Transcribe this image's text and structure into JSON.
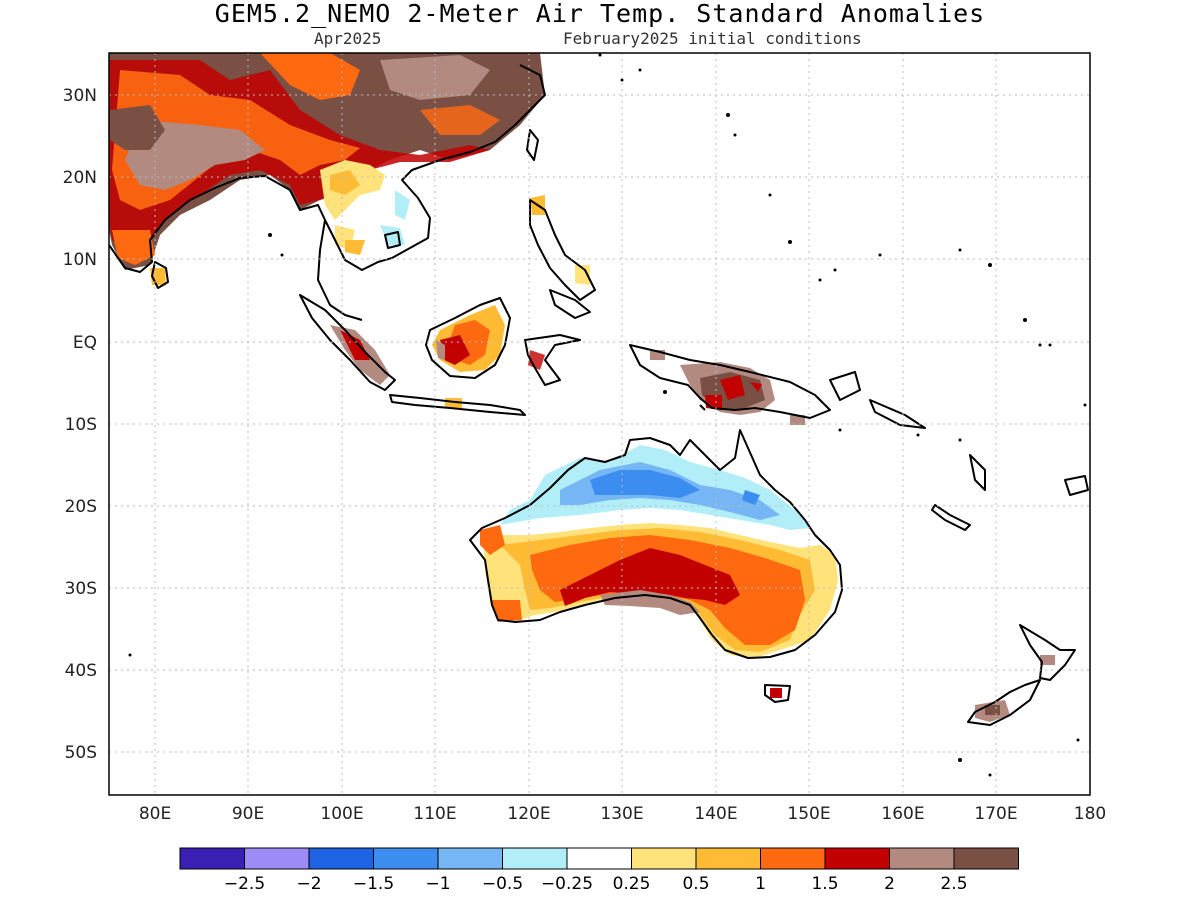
{
  "title": "GEM5.2_NEMO 2-Meter Air Temp. Standard Anomalies",
  "subtitle_left": "Apr2025",
  "subtitle_right": "February2025 initial conditions",
  "lat_labels": [
    "30N",
    "20N",
    "10N",
    "EQ",
    "10S",
    "20S",
    "30S",
    "40S",
    "50S"
  ],
  "lon_labels": [
    "80E",
    "90E",
    "100E",
    "110E",
    "120E",
    "130E",
    "140E",
    "150E",
    "160E",
    "170E",
    "180"
  ],
  "colorbar": {
    "colors": [
      "#3a1fb4",
      "#9d8cf5",
      "#1f63e5",
      "#3b8ef0",
      "#76b6f5",
      "#b2eef8",
      "#ffffff",
      "#ffe27a",
      "#ffbb33",
      "#ff6a10",
      "#c20000",
      "#b38a80",
      "#7a5045"
    ],
    "labels": [
      "-2.5",
      "-2",
      "-1.5",
      "-1",
      "-0.5",
      "-0.25",
      "0.25",
      "0.5",
      "1",
      "1.5",
      "2",
      "2.5"
    ]
  },
  "regions": [
    {
      "name": "South Asia",
      "category": "2.5"
    },
    {
      "name": "Indochina",
      "category": "0.25 to 0.5"
    },
    {
      "name": "Borneo",
      "category": "1 to 1.5"
    },
    {
      "name": "New Guinea",
      "category": "2 to 2.5"
    },
    {
      "name": "Northern Australia",
      "category": "-1.5 to -0.5"
    },
    {
      "name": "Central Australia",
      "category": "1.5 to 2"
    },
    {
      "name": "Southeast Australia",
      "category": "1 to 1.5"
    },
    {
      "name": "New Zealand",
      "category": "2.5"
    }
  ]
}
